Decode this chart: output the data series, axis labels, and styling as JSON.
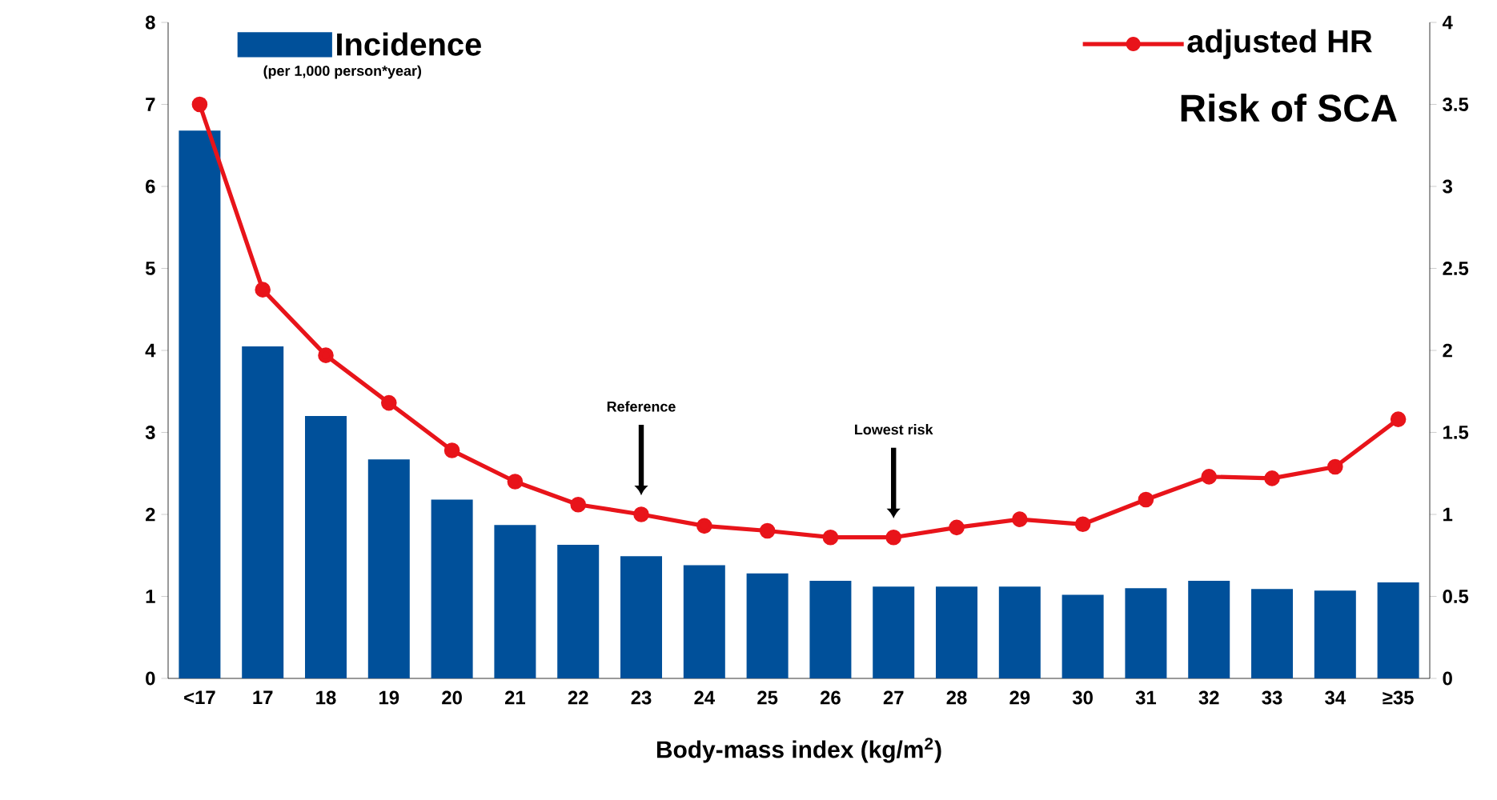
{
  "chart_data": {
    "type": "bar",
    "title": "Risk of SCA",
    "xlabel": "Body-mass index (kg/m$^{2}$)",
    "categories": [
      "<17",
      "17",
      "18",
      "19",
      "20",
      "21",
      "22",
      "23",
      "24",
      "25",
      "26",
      "27",
      "28",
      "29",
      "30",
      "31",
      "32",
      "33",
      "34",
      "≥35"
    ],
    "series": [
      {
        "name": "Incidence",
        "color": "#00509a",
        "values": [
          6.68,
          4.05,
          3.2,
          2.67,
          2.18,
          1.87,
          1.63,
          1.49,
          1.38,
          1.28,
          1.19,
          1.12,
          1.12,
          1.12,
          1.02,
          1.1,
          1.19,
          1.09,
          1.07,
          1.17
        ]
      },
      {
        "name": "adjusted HR",
        "type": "line",
        "axis": "y2",
        "color": "#e8141a",
        "marker": "circle",
        "values": [
          3.5,
          2.37,
          1.97,
          1.68,
          1.39,
          1.2,
          1.06,
          1.0,
          0.93,
          0.9,
          0.86,
          0.86,
          0.92,
          0.97,
          0.94,
          1.09,
          1.23,
          1.22,
          1.29,
          1.58
        ]
      }
    ],
    "ylim": [
      0,
      8
    ],
    "yticks": [
      0,
      1,
      2,
      3,
      4,
      5,
      6,
      7,
      8
    ],
    "y2lim": [
      0,
      4
    ],
    "y2ticks": [
      0,
      0.5,
      1,
      1.5,
      2,
      2.5,
      3,
      3.5,
      4
    ],
    "legend": "top",
    "grid": false,
    "annotations": [
      "(per 1,000 person*year)",
      "Reference",
      "Lowest risk"
    ]
  }
}
